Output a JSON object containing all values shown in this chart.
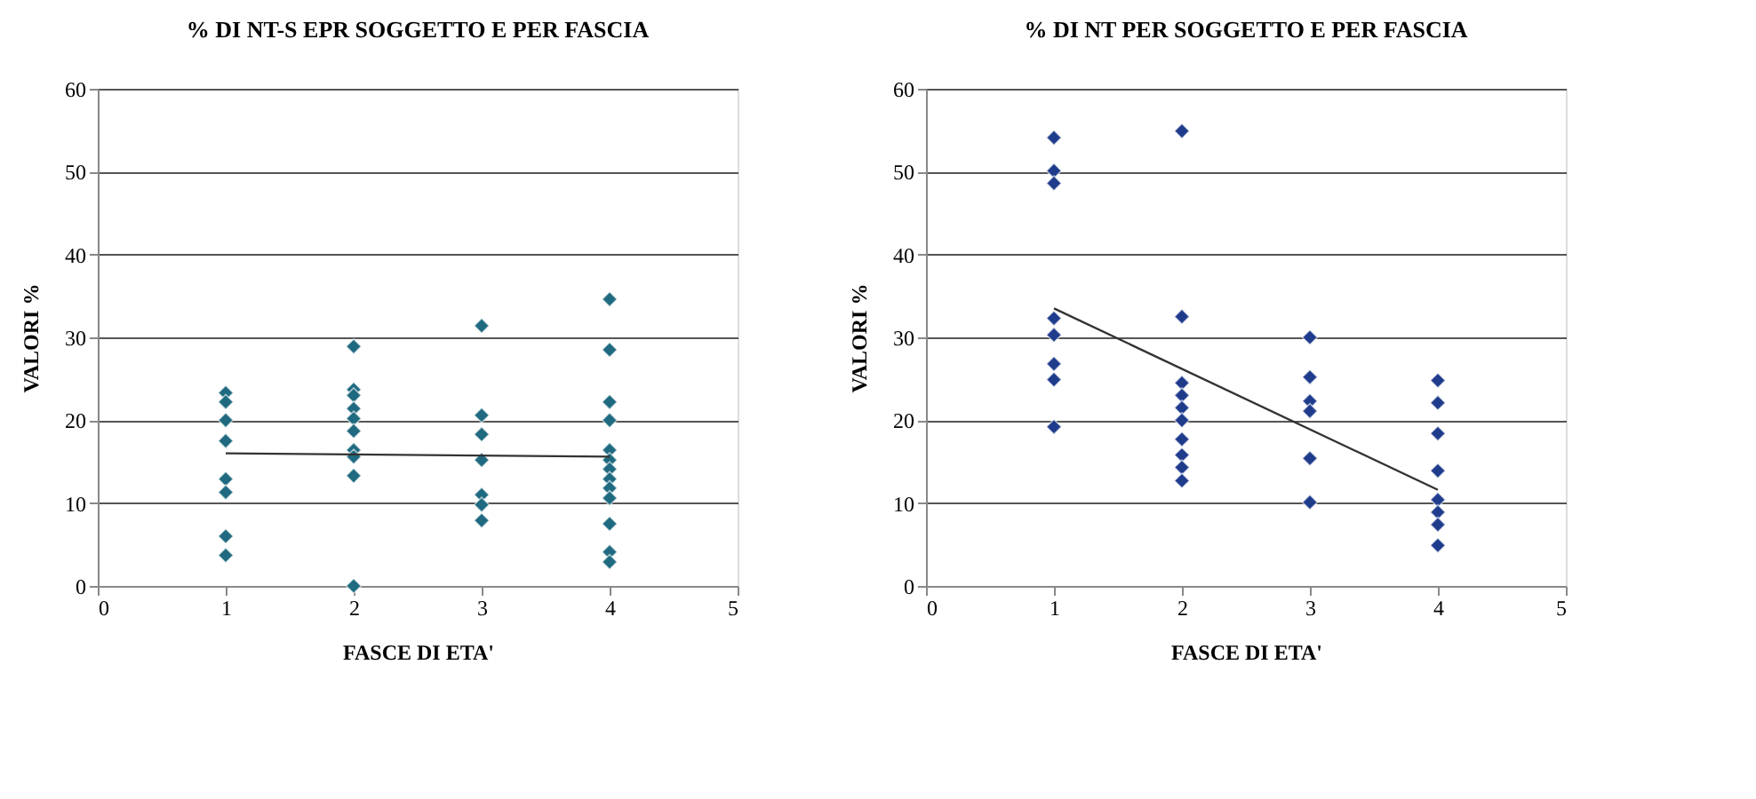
{
  "chart_data": [
    {
      "type": "scatter",
      "title": "% DI NT-S EPR SOGGETTO E PER FASCIA",
      "xlabel": "FASCE DI ETA'",
      "ylabel": "VALORI %",
      "xlim": [
        0,
        5
      ],
      "xticks": [
        0,
        1,
        2,
        3,
        4,
        5
      ],
      "ylim": [
        0,
        60
      ],
      "yticks": [
        0,
        10,
        20,
        30,
        40,
        50,
        60
      ],
      "grid": "y",
      "marker": "diamond",
      "series": [
        {
          "color": "#1f6a80",
          "x": [
            1,
            1,
            1,
            1,
            1,
            1,
            1,
            1,
            2,
            2,
            2,
            2,
            2,
            2,
            2,
            2,
            2,
            2,
            3,
            3,
            3,
            3,
            3,
            3,
            3,
            4,
            4,
            4,
            4,
            4,
            4,
            4,
            4,
            4,
            4,
            4,
            4,
            4
          ],
          "values": [
            23.3,
            22.2,
            20,
            17.5,
            12.9,
            11.3,
            6,
            3.7,
            28.9,
            23.7,
            23,
            21.4,
            20.2,
            18.7,
            16.4,
            15.6,
            13.3,
            0,
            31.4,
            20.6,
            18.3,
            15.2,
            11,
            9.8,
            7.9,
            34.6,
            28.5,
            22.2,
            20,
            16.4,
            15.2,
            14.1,
            12.9,
            11.8,
            10.6,
            7.5,
            4.1,
            2.9
          ]
        },
        {
          "type": "line",
          "color": "#333333",
          "marker": "none",
          "x": [
            1,
            4
          ],
          "values": [
            16,
            15.6
          ]
        }
      ]
    },
    {
      "type": "scatter",
      "title": "% DI NT PER SOGGETTO E PER FASCIA",
      "xlabel": "FASCE DI ETA'",
      "ylabel": "VALORI %",
      "xlim": [
        0,
        5
      ],
      "xticks": [
        0,
        1,
        2,
        3,
        4,
        5
      ],
      "ylim": [
        0,
        60
      ],
      "yticks": [
        0,
        10,
        20,
        30,
        40,
        50,
        60
      ],
      "grid": "y",
      "marker": "diamond",
      "series": [
        {
          "color": "#1f3c8c",
          "x": [
            1,
            1,
            1,
            1,
            1,
            1,
            1,
            1,
            2,
            2,
            2,
            2,
            2,
            2,
            2,
            2,
            2,
            2,
            3,
            3,
            3,
            3,
            3,
            3,
            4,
            4,
            4,
            4,
            4,
            4,
            4,
            4
          ],
          "values": [
            54.1,
            50.1,
            48.6,
            32.3,
            30.3,
            26.8,
            24.9,
            19.2,
            54.9,
            32.5,
            24.5,
            23,
            21.5,
            20,
            17.7,
            15.8,
            14.3,
            12.7,
            30,
            25.2,
            22.3,
            21.1,
            15.4,
            10.1,
            24.8,
            22.1,
            18.4,
            13.9,
            10.4,
            8.9,
            7.4,
            4.9
          ]
        },
        {
          "type": "line",
          "color": "#333333",
          "marker": "none",
          "x": [
            1,
            4
          ],
          "values": [
            33.5,
            11.6
          ]
        }
      ]
    }
  ]
}
